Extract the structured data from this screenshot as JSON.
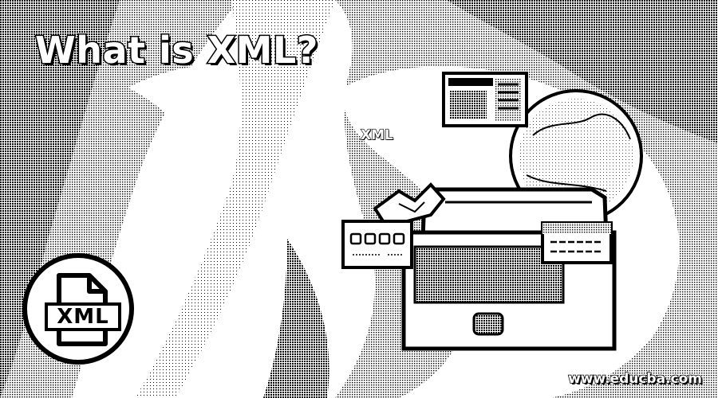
{
  "headline": "What is XML?",
  "illustration": {
    "floating_label": "XML",
    "laptop_icon": "laptop-icon",
    "globe_icon": "globe-icon",
    "document_icon": "document-icon",
    "keyboard_icon": "keyboard-icon"
  },
  "file_badge": {
    "icon": "xml-file-icon",
    "label": "XML"
  },
  "watermark": "www.educba.com",
  "colors": {
    "ink": "#000000",
    "paper": "#ffffff"
  }
}
